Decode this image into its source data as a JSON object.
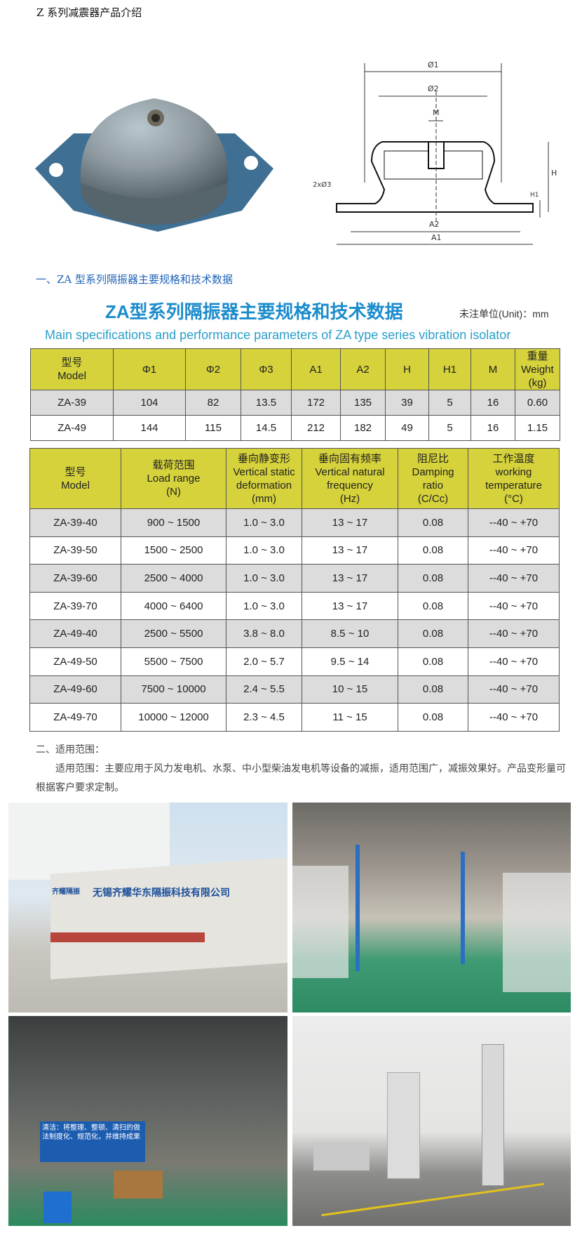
{
  "page_title": "Z 系列减震器产品介绍",
  "section1_heading": "一、ZA 型系列隔振器主要规格和技术数据",
  "spec_image": {
    "title": "ZA型系列隔振器主要规格和技术数据",
    "unit_note": "未注单位(Unit)：mm",
    "subtitle": "Main specifications and performance parameters of ZA type series vibration isolator"
  },
  "drawing_labels": {
    "d1": "Ø1",
    "d2": "Ø2",
    "m": "M",
    "d3": "2xØ3",
    "h": "H",
    "h1": "H1",
    "a2": "A2",
    "a1": "A1"
  },
  "table1": {
    "headers": [
      "型号\nModel",
      "Φ1",
      "Φ2",
      "Φ3",
      "A1",
      "A2",
      "H",
      "H1",
      "M",
      "重量\nWeight\n(kg)"
    ],
    "rows": [
      [
        "ZA-39",
        "104",
        "82",
        "13.5",
        "172",
        "135",
        "39",
        "5",
        "16",
        "0.60"
      ],
      [
        "ZA-49",
        "144",
        "115",
        "14.5",
        "212",
        "182",
        "49",
        "5",
        "16",
        "1.15"
      ]
    ]
  },
  "table2": {
    "headers": [
      "型号\nModel",
      "载荷范围\nLoad range\n(N)",
      "垂向静变形\nVertical static\ndeformation\n(mm)",
      "垂向固有频率\nVertical natural\nfrequency\n(Hz)",
      "阻尼比\nDamping\nratio\n(C/Cc)",
      "工作温度\nworking\ntemperature\n(°C)"
    ],
    "rows": [
      [
        "ZA-39-40",
        "900 ~ 1500",
        "1.0 ~ 3.0",
        "13 ~ 17",
        "0.08",
        "--40 ~ +70"
      ],
      [
        "ZA-39-50",
        "1500 ~ 2500",
        "1.0 ~ 3.0",
        "13 ~ 17",
        "0.08",
        "--40 ~ +70"
      ],
      [
        "ZA-39-60",
        "2500 ~ 4000",
        "1.0 ~ 3.0",
        "13 ~ 17",
        "0.08",
        "--40 ~ +70"
      ],
      [
        "ZA-39-70",
        "4000 ~ 6400",
        "1.0 ~ 3.0",
        "13 ~ 17",
        "0.08",
        "--40 ~ +70"
      ],
      [
        "ZA-49-40",
        "2500 ~ 5500",
        "3.8 ~ 8.0",
        "8.5 ~ 10",
        "0.08",
        "--40 ~ +70"
      ],
      [
        "ZA-49-50",
        "5500 ~ 7500",
        "2.0 ~ 5.7",
        "9.5 ~ 14",
        "0.08",
        "--40 ~ +70"
      ],
      [
        "ZA-49-60",
        "7500 ~ 10000",
        "2.4 ~ 5.5",
        "10 ~ 15",
        "0.08",
        "--40 ~ +70"
      ],
      [
        "ZA-49-70",
        "10000 ~ 12000",
        "2.3 ~ 4.5",
        "11 ~ 15",
        "0.08",
        "--40 ~ +70"
      ]
    ]
  },
  "section2_heading": "二、适用范围：",
  "section2_text": "适用范围：主要应用于风力发电机、水泵、中小型柴油发电机等设备的减振，适用范围广，减振效果好。产品变形量可根据客户要求定制。",
  "photos": {
    "company_sign": "无锡齐耀华东隔振科技有限公司",
    "company_logo": "齐耀隔振",
    "workshop_banner": "清洁：将整理、整顿、清扫的做法制度化、规范化，并维持成果"
  },
  "colors": {
    "header_yellow": "#d5d23b",
    "heading_blue": "#1e63b8",
    "title_blue": "#1b8ccc"
  }
}
